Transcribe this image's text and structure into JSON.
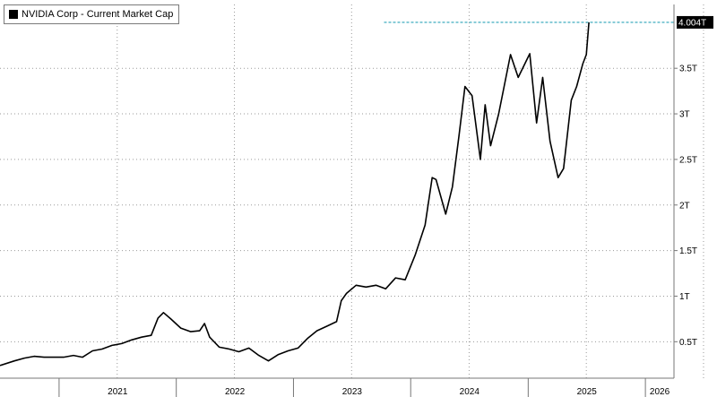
{
  "chart_data": {
    "type": "line",
    "legend": {
      "label": "NVIDIA Corp - Current Market Cap",
      "color": "#000000",
      "placement": "top-left"
    },
    "x_ticks": [
      "2021",
      "2022",
      "2023",
      "2024",
      "2025",
      "2026"
    ],
    "y_ticks": [
      "0.5T",
      "1T",
      "1.5T",
      "2T",
      "2.5T",
      "3T",
      "3.5T"
    ],
    "y_tick_values": [
      0.5,
      1.0,
      1.5,
      2.0,
      2.5,
      3.0,
      3.5
    ],
    "xlim": [
      "2020-07-01",
      "2026-03-31"
    ],
    "ylim": [
      0.1,
      4.2
    ],
    "y_unit": "T",
    "grid": true,
    "y_axis_side": "right",
    "last_value_label": "4.004T",
    "last_value": 4.004,
    "reference_line": {
      "value": 4.004,
      "color": "#2aa3b8",
      "style": "dashed",
      "from": "2023-10-10"
    },
    "series": [
      {
        "color": "#000000",
        "points": [
          [
            "2020-07-01",
            0.24
          ],
          [
            "2020-08-15",
            0.29
          ],
          [
            "2020-09-15",
            0.32
          ],
          [
            "2020-10-15",
            0.34
          ],
          [
            "2020-11-15",
            0.33
          ],
          [
            "2020-12-15",
            0.33
          ],
          [
            "2021-01-15",
            0.33
          ],
          [
            "2021-02-15",
            0.35
          ],
          [
            "2021-03-15",
            0.33
          ],
          [
            "2021-04-15",
            0.4
          ],
          [
            "2021-05-15",
            0.42
          ],
          [
            "2021-06-15",
            0.46
          ],
          [
            "2021-07-15",
            0.48
          ],
          [
            "2021-08-15",
            0.52
          ],
          [
            "2021-09-15",
            0.55
          ],
          [
            "2021-10-15",
            0.57
          ],
          [
            "2021-11-05",
            0.76
          ],
          [
            "2021-11-22",
            0.82
          ],
          [
            "2021-12-15",
            0.75
          ],
          [
            "2022-01-15",
            0.65
          ],
          [
            "2022-02-15",
            0.61
          ],
          [
            "2022-03-15",
            0.62
          ],
          [
            "2022-03-30",
            0.7
          ],
          [
            "2022-04-15",
            0.55
          ],
          [
            "2022-05-15",
            0.44
          ],
          [
            "2022-06-15",
            0.42
          ],
          [
            "2022-07-15",
            0.39
          ],
          [
            "2022-08-15",
            0.43
          ],
          [
            "2022-09-15",
            0.35
          ],
          [
            "2022-10-15",
            0.29
          ],
          [
            "2022-11-15",
            0.36
          ],
          [
            "2022-12-15",
            0.4
          ],
          [
            "2023-01-15",
            0.43
          ],
          [
            "2023-02-15",
            0.54
          ],
          [
            "2023-03-15",
            0.62
          ],
          [
            "2023-04-15",
            0.67
          ],
          [
            "2023-05-15",
            0.72
          ],
          [
            "2023-05-30",
            0.95
          ],
          [
            "2023-06-15",
            1.03
          ],
          [
            "2023-07-15",
            1.12
          ],
          [
            "2023-08-15",
            1.1
          ],
          [
            "2023-09-15",
            1.12
          ],
          [
            "2023-10-15",
            1.08
          ],
          [
            "2023-11-15",
            1.2
          ],
          [
            "2023-12-15",
            1.18
          ],
          [
            "2024-01-15",
            1.45
          ],
          [
            "2024-02-15",
            1.78
          ],
          [
            "2024-03-08",
            2.3
          ],
          [
            "2024-03-20",
            2.28
          ],
          [
            "2024-04-19",
            1.9
          ],
          [
            "2024-05-10",
            2.2
          ],
          [
            "2024-05-30",
            2.75
          ],
          [
            "2024-06-18",
            3.3
          ],
          [
            "2024-07-10",
            3.2
          ],
          [
            "2024-08-05",
            2.5
          ],
          [
            "2024-08-20",
            3.1
          ],
          [
            "2024-09-06",
            2.65
          ],
          [
            "2024-10-01",
            3.0
          ],
          [
            "2024-11-07",
            3.65
          ],
          [
            "2024-12-01",
            3.4
          ],
          [
            "2025-01-06",
            3.66
          ],
          [
            "2025-01-27",
            2.9
          ],
          [
            "2025-02-15",
            3.4
          ],
          [
            "2025-03-10",
            2.7
          ],
          [
            "2025-04-04",
            2.3
          ],
          [
            "2025-04-21",
            2.4
          ],
          [
            "2025-05-15",
            3.15
          ],
          [
            "2025-06-01",
            3.3
          ],
          [
            "2025-06-20",
            3.55
          ],
          [
            "2025-07-01",
            3.65
          ],
          [
            "2025-07-09",
            4.004
          ]
        ]
      }
    ]
  }
}
